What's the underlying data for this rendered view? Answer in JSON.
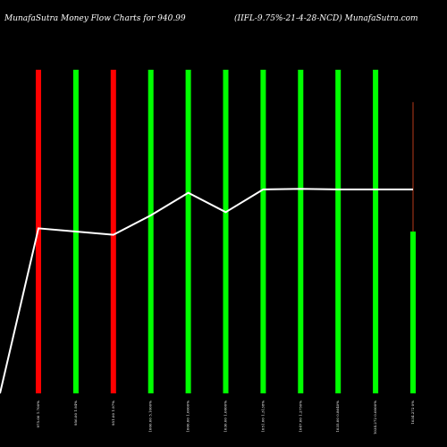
{
  "header": {
    "left_title": "MunafaSutra  Money Flow  Charts for 940.99",
    "right_title": "(IIFL-9.75%-21-4-28-NCD) MunafaSutra.com"
  },
  "colors": {
    "background": "#000000",
    "up_bar": "#00ff00",
    "down_bar": "#ff0000",
    "line": "#ffffff"
  },
  "chart_data": {
    "type": "bar",
    "bar_categories": [
      "975.00 1.700%",
      "956.00 1.94%",
      "951.00 1.97%",
      "1000.00 5.1000%",
      "1000.00 1.0000%",
      "1030.00 1.0000%",
      "1051.00 1.3138%",
      "1047.00 1.2750%",
      "1035.00 0.8640%",
      "1034.272 0.0000%",
      "1034.272 0%"
    ],
    "bars": [
      {
        "direction": "down",
        "height": 1.0
      },
      {
        "direction": "up",
        "height": 1.0
      },
      {
        "direction": "down",
        "height": 1.0
      },
      {
        "direction": "up",
        "height": 1.0
      },
      {
        "direction": "up",
        "height": 1.0
      },
      {
        "direction": "up",
        "height": 1.0
      },
      {
        "direction": "up",
        "height": 1.0
      },
      {
        "direction": "up",
        "height": 1.0
      },
      {
        "direction": "up",
        "height": 1.0
      },
      {
        "direction": "up",
        "height": 1.0
      },
      {
        "direction": "up",
        "height": 0.5
      }
    ],
    "last_bar_wick": 0.9,
    "line": {
      "values": [
        0.0,
        0.51,
        0.5,
        0.49,
        0.55,
        0.62,
        0.56,
        0.63,
        0.632,
        0.63,
        0.63,
        0.63
      ],
      "ylim": [
        0,
        1
      ]
    },
    "ylim": [
      0,
      1
    ],
    "grid": false,
    "legend": "none"
  }
}
